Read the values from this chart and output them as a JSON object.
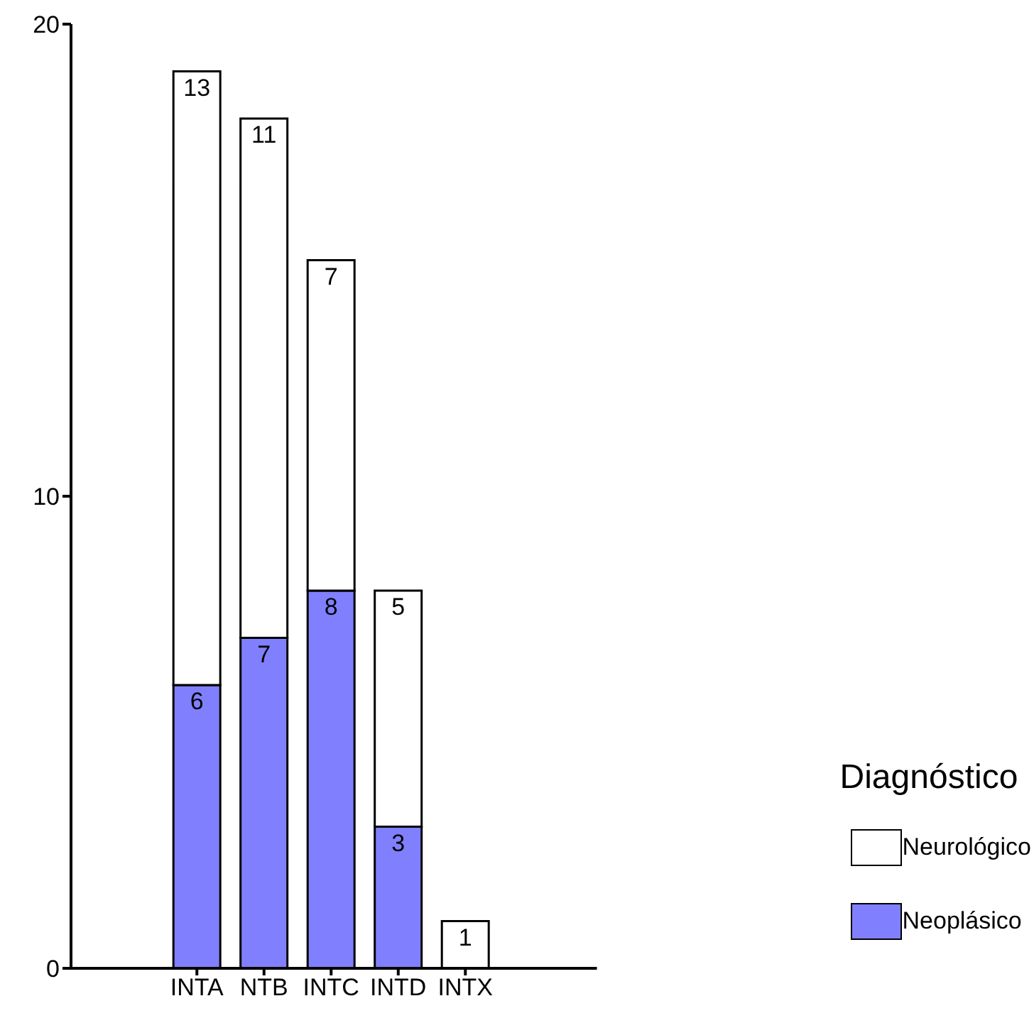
{
  "chart_data": {
    "type": "bar",
    "stacked": true,
    "legend_title": "Diagnóstico",
    "categories": [
      "INTA",
      "NTB",
      "INTC",
      "INTD",
      "INTX"
    ],
    "series": [
      {
        "name": "Neoplásico",
        "color": "#8080ff",
        "values": [
          6,
          7,
          8,
          3,
          null
        ]
      },
      {
        "name": "Neurológico",
        "color": "#ffffff",
        "values": [
          13,
          11,
          7,
          5,
          1
        ]
      }
    ],
    "ylim": [
      0,
      20
    ],
    "yticks": [
      0,
      10,
      20
    ],
    "data_labels": true,
    "legend": "right",
    "grid": false
  }
}
